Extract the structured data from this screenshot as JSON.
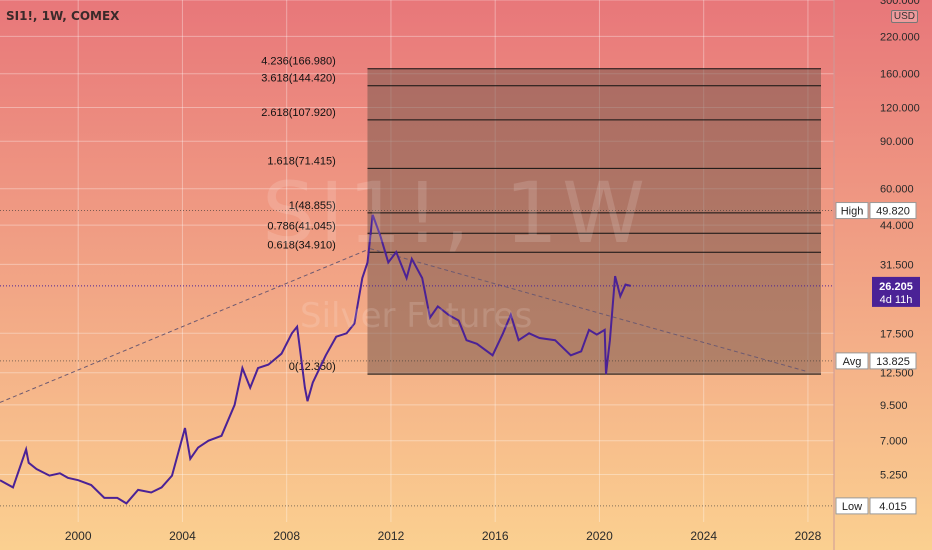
{
  "header": {
    "symbol": "SI1!, 1W, COMEX",
    "currency": "USD"
  },
  "watermark": {
    "symbol": "SI1!, 1W",
    "description": "Silver Futures"
  },
  "colors": {
    "bg_top": "#e8777a",
    "bg_bottom": "#fbd090",
    "line": "#4b2296",
    "fib_band": "#7a5a4f",
    "grid": "#ffffff",
    "last_price_tag": "#4b2296"
  },
  "chart_data": {
    "type": "line",
    "scale": "log",
    "ylim": [
      3.5,
      300
    ],
    "xlim": [
      1997.0,
      2029.0
    ],
    "x_ticks": [
      "2000",
      "2004",
      "2008",
      "2012",
      "2016",
      "2020",
      "2024",
      "2028"
    ],
    "y_ticks": [
      "300.000",
      "220.000",
      "160.000",
      "120.000",
      "90.000",
      "60.000",
      "44.000",
      "31.500",
      "17.500",
      "12.500",
      "9.500",
      "7.000",
      "5.250"
    ],
    "series": [
      {
        "x": [
          1997.0,
          1997.5,
          1998.0,
          1998.1,
          1998.4,
          1998.9,
          1999.3,
          1999.6,
          2000.0,
          2000.5,
          2001.0,
          2001.5,
          2001.85,
          2002.3,
          2002.8,
          2003.2,
          2003.6,
          2004.1,
          2004.3,
          2004.6,
          2005.0,
          2005.5,
          2006.0,
          2006.3,
          2006.6,
          2006.9,
          2007.3,
          2007.8,
          2008.2,
          2008.4,
          2008.7,
          2008.8,
          2009.0,
          2009.5,
          2009.9,
          2010.3,
          2010.6,
          2010.9,
          2011.1,
          2011.3,
          2011.6,
          2011.9,
          2012.2,
          2012.6,
          2012.8,
          2013.2,
          2013.5,
          2013.8,
          2014.2,
          2014.6,
          2014.9,
          2015.3,
          2015.9,
          2016.3,
          2016.6,
          2016.9,
          2017.3,
          2017.7,
          2018.3,
          2018.9,
          2019.3,
          2019.6,
          2019.9,
          2020.2,
          2020.25,
          2020.4,
          2020.6,
          2020.8,
          2021.0,
          2021.2
        ],
        "y": [
          5.0,
          4.7,
          6.5,
          5.8,
          5.5,
          5.2,
          5.3,
          5.1,
          5.0,
          4.8,
          4.3,
          4.3,
          4.1,
          4.6,
          4.5,
          4.7,
          5.2,
          7.8,
          6.0,
          6.6,
          7.0,
          7.3,
          9.5,
          13.0,
          11.0,
          13.0,
          13.4,
          14.7,
          17.5,
          18.5,
          11.0,
          9.8,
          11.5,
          14.5,
          17.0,
          17.5,
          19.0,
          28.0,
          32.0,
          48.0,
          40.0,
          32.0,
          35.0,
          28.0,
          33.0,
          28.0,
          20.0,
          22.0,
          20.5,
          19.5,
          16.5,
          16.0,
          14.5,
          17.5,
          20.5,
          16.5,
          17.5,
          16.8,
          16.5,
          14.5,
          15.0,
          18.0,
          17.3,
          18.0,
          12.35,
          16.5,
          28.5,
          24.0,
          26.5,
          26.2
        ]
      }
    ],
    "fib_levels": [
      {
        "label": "0(12.350)",
        "value": 12.35
      },
      {
        "label": "0.618(34.910)",
        "value": 34.91
      },
      {
        "label": "0.786(41.045)",
        "value": 41.045
      },
      {
        "label": "1(48.855)",
        "value": 48.855
      },
      {
        "label": "1.618(71.415)",
        "value": 71.415
      },
      {
        "label": "2.618(107.920)",
        "value": 107.92
      },
      {
        "label": "3.618(144.420)",
        "value": 144.42
      },
      {
        "label": "4.236(166.980)",
        "value": 166.98
      }
    ],
    "fib_range_x": [
      2011.1,
      2031.5
    ],
    "fib_label_x": 2007.2,
    "trendlines": [
      {
        "x": [
          1997.0,
          2011.2
        ],
        "y": [
          9.7,
          36.0
        ]
      },
      {
        "x": [
          2011.2,
          2028.0
        ],
        "y": [
          36.0,
          12.6
        ]
      }
    ],
    "price_tags": [
      {
        "label": "High",
        "value": "49.820",
        "y": 49.82
      },
      {
        "label": "Avg",
        "value": "13.825",
        "y": 13.825
      },
      {
        "label": "Low",
        "value": "4.015",
        "y": 4.015
      }
    ],
    "last_price": {
      "value": "26.205",
      "countdown": "4d 11h",
      "y": 26.205
    }
  }
}
